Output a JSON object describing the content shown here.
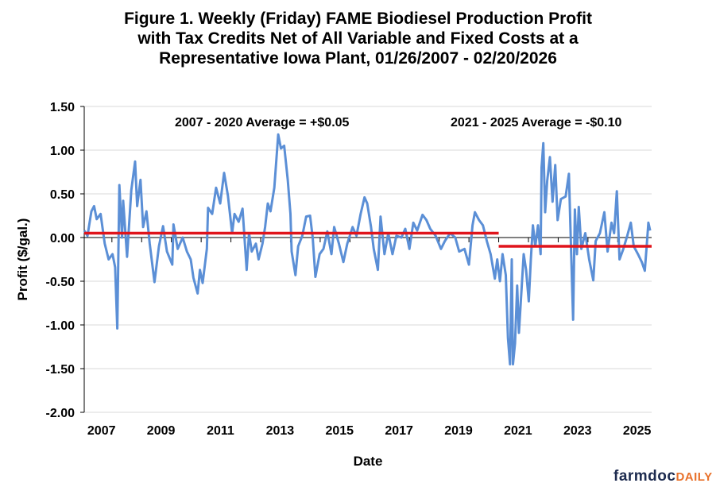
{
  "chart_data": {
    "type": "line",
    "title": [
      "Figure 1. Weekly (Friday) FAME Biodiesel Production Profit",
      "with Tax Credits Net of All Variable and Fixed Costs at a",
      "Representative Iowa Plant, 01/26/2007  - 02/20/2026"
    ],
    "xlabel": "Date",
    "ylabel": "Profit ($/gal.)",
    "xlim": [
      2007.07,
      2026.14
    ],
    "ylim": [
      -2.0,
      1.5
    ],
    "y_ticks": [
      "1.50",
      "1.00",
      "0.50",
      "0.00",
      "-0.50",
      "-1.00",
      "-1.50",
      "-2.00"
    ],
    "y_tick_values": [
      1.5,
      1.0,
      0.5,
      0.0,
      -0.5,
      -1.0,
      -1.5,
      -2.0
    ],
    "x_tick_labels": [
      "2007",
      "2009",
      "2011",
      "2013",
      "2015",
      "2017",
      "2019",
      "2021",
      "2023",
      "2025"
    ],
    "grid": "horizontal",
    "colors": {
      "series": "#5b8fd6",
      "average": "#e0141b",
      "grid": "#d9d9d9"
    },
    "series": [
      {
        "x": [
          2007.07,
          2007.18,
          2007.31,
          2007.4,
          2007.49,
          2007.62,
          2007.76,
          2007.89,
          2008.02,
          2008.11,
          2008.18,
          2008.25,
          2008.34,
          2008.38,
          2008.51,
          2008.65,
          2008.78,
          2008.85,
          2008.96,
          2009.05,
          2009.16,
          2009.27,
          2009.43,
          2009.58,
          2009.72,
          2009.85,
          2010.03,
          2010.07,
          2010.21,
          2010.38,
          2010.52,
          2010.65,
          2010.74,
          2010.88,
          2010.96,
          2011.05,
          2011.19,
          2011.23,
          2011.37,
          2011.5,
          2011.64,
          2011.77,
          2011.9,
          2012.04,
          2012.12,
          2012.26,
          2012.39,
          2012.53,
          2012.61,
          2012.7,
          2012.84,
          2012.93,
          2013.06,
          2013.15,
          2013.24,
          2013.33,
          2013.46,
          2013.59,
          2013.68,
          2013.79,
          2013.91,
          2014.0,
          2014.04,
          2014.17,
          2014.26,
          2014.4,
          2014.53,
          2014.66,
          2014.75,
          2014.84,
          2014.98,
          2015.11,
          2015.24,
          2015.38,
          2015.47,
          2015.63,
          2015.78,
          2015.91,
          2016.09,
          2016.22,
          2016.36,
          2016.49,
          2016.58,
          2016.71,
          2016.8,
          2016.94,
          2017.03,
          2017.16,
          2017.29,
          2017.43,
          2017.56,
          2017.73,
          2017.86,
          2018.0,
          2018.13,
          2018.26,
          2018.44,
          2018.57,
          2018.7,
          2018.88,
          2019.06,
          2019.19,
          2019.37,
          2019.54,
          2019.67,
          2019.85,
          2020.0,
          2020.12,
          2020.2,
          2020.34,
          2020.47,
          2020.6,
          2020.73,
          2020.87,
          2020.95,
          2021.04,
          2021.13,
          2021.24,
          2021.31,
          2021.38,
          2021.44,
          2021.48,
          2021.55,
          2021.62,
          2021.68,
          2021.75,
          2021.84,
          2021.92,
          2022.01,
          2022.08,
          2022.15,
          2022.23,
          2022.32,
          2022.41,
          2022.44,
          2022.5,
          2022.56,
          2022.63,
          2022.72,
          2022.81,
          2022.9,
          2022.98,
          2023.09,
          2023.25,
          2023.36,
          2023.43,
          2023.5,
          2023.56,
          2023.63,
          2023.69,
          2023.78,
          2023.91,
          2024.04,
          2024.18,
          2024.26,
          2024.4,
          2024.55,
          2024.66,
          2024.79,
          2024.88,
          2024.97,
          2025.06,
          2025.19,
          2025.32,
          2025.44,
          2025.54,
          2025.68,
          2025.81,
          2025.91,
          2025.98,
          2026.03,
          2026.09
        ],
        "y": [
          0.08,
          0.02,
          0.3,
          0.36,
          0.21,
          0.27,
          -0.07,
          -0.25,
          -0.19,
          -0.34,
          -1.04,
          0.6,
          0.0,
          0.42,
          -0.22,
          0.54,
          0.87,
          0.36,
          0.66,
          0.12,
          0.3,
          -0.07,
          -0.51,
          -0.1,
          0.13,
          -0.16,
          -0.31,
          0.15,
          -0.13,
          0.0,
          -0.16,
          -0.25,
          -0.46,
          -0.64,
          -0.37,
          -0.52,
          -0.13,
          0.34,
          0.27,
          0.57,
          0.39,
          0.74,
          0.48,
          0.05,
          0.27,
          0.18,
          0.33,
          -0.37,
          0.05,
          -0.16,
          -0.07,
          -0.25,
          -0.07,
          0.12,
          0.39,
          0.3,
          0.57,
          1.18,
          1.02,
          1.05,
          0.66,
          0.27,
          -0.16,
          -0.43,
          -0.1,
          0.02,
          0.24,
          0.25,
          0.0,
          -0.45,
          -0.19,
          -0.13,
          0.07,
          -0.19,
          0.12,
          -0.07,
          -0.28,
          -0.07,
          0.12,
          0.02,
          0.27,
          0.46,
          0.39,
          0.12,
          -0.13,
          -0.37,
          0.24,
          -0.19,
          0.05,
          -0.19,
          0.02,
          0.0,
          0.1,
          -0.13,
          0.17,
          0.08,
          0.26,
          0.2,
          0.1,
          0.02,
          -0.13,
          -0.04,
          0.05,
          0.0,
          -0.16,
          -0.13,
          -0.31,
          0.14,
          0.29,
          0.2,
          0.14,
          -0.04,
          -0.19,
          -0.47,
          -0.25,
          -0.5,
          -0.19,
          -0.43,
          -1.15,
          -1.45,
          -0.25,
          -1.45,
          -1.21,
          -0.55,
          -1.09,
          -0.7,
          -0.19,
          -0.37,
          -0.73,
          -0.25,
          0.14,
          -0.1,
          0.14,
          -0.19,
          0.8,
          1.08,
          0.29,
          0.65,
          0.92,
          0.41,
          0.83,
          0.2,
          0.44,
          0.47,
          0.73,
          -0.1,
          -0.94,
          0.32,
          -0.19,
          0.35,
          -0.13,
          0.05,
          -0.25,
          -0.49,
          -0.04,
          0.05,
          0.29,
          -0.16,
          0.17,
          0.05,
          0.53,
          -0.25,
          -0.13,
          0.02,
          0.17,
          -0.1,
          -0.19,
          -0.28,
          -0.38,
          -0.07,
          0.17,
          0.08
        ]
      }
    ],
    "averages": [
      {
        "label": "2007 - 2020 Average = +$0.05",
        "value": 0.05,
        "x": [
          2007.07,
          2021.0
        ]
      },
      {
        "label": "2021 - 2025 Average = -$0.10",
        "value": -0.1,
        "x": [
          2021.0,
          2026.14
        ]
      }
    ]
  },
  "logo": {
    "part1": "farmdoc",
    "part2": "DAILY"
  }
}
